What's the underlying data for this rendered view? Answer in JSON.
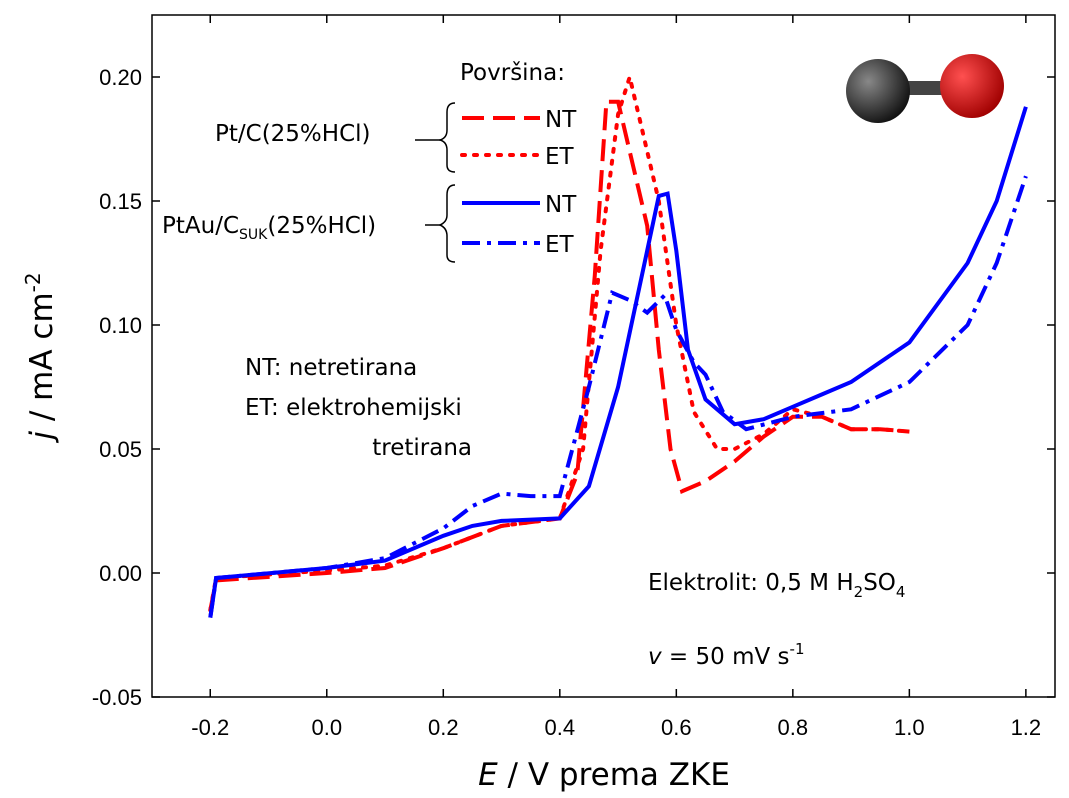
{
  "chart_data": {
    "type": "line",
    "xlabel": [
      "E",
      " / V prema ZKE"
    ],
    "ylabel": [
      "j",
      " / mA cm",
      "-2"
    ],
    "xlim": [
      -0.3,
      1.25
    ],
    "ylim": [
      -0.05,
      0.225
    ],
    "xticks": [
      -0.2,
      {
        "value": 0,
        "label": "0.0"
      },
      0.2,
      0.4,
      0.6,
      0.8,
      {
        "value": 1,
        "label": "1.0"
      },
      1.2
    ],
    "yticks": [
      {
        "value": -0.05,
        "label": "-0.05"
      },
      {
        "value": 0,
        "label": "0.00"
      },
      {
        "value": 0.05,
        "label": "0.05"
      },
      {
        "value": 0.1,
        "label": "0.10"
      },
      {
        "value": 0.15,
        "label": "0.15"
      },
      {
        "value": 0.2,
        "label": "0.20"
      }
    ],
    "legend_title": "Površina:",
    "legend_groups": [
      {
        "label": [
          "Pt/C(25%HCl)"
        ]
      },
      {
        "label": [
          "PtAu/C",
          "SUK",
          "(25%HCl)"
        ]
      }
    ],
    "annotations": {
      "abbrev": [
        "NT: netretirana",
        "ET: elektrohemijski",
        "tretirana"
      ],
      "electrolyte": [
        "Elektrolit:  0,5 M H",
        "2",
        "SO",
        "4"
      ],
      "rate": [
        "v",
        " = 50 mV s",
        "-1"
      ]
    },
    "series": [
      {
        "name": "NT",
        "group": 0,
        "color": "#ff0000",
        "dash": "dash",
        "x": [
          -0.2,
          -0.19,
          0.0,
          0.1,
          0.2,
          0.3,
          0.4,
          0.43,
          0.46,
          0.48,
          0.5,
          0.52,
          0.55,
          0.57,
          0.59,
          0.61,
          0.65,
          0.7,
          0.75,
          0.8,
          0.85,
          0.9,
          0.95,
          1.0
        ],
        "values": [
          -0.015,
          -0.003,
          0.0,
          0.002,
          0.01,
          0.019,
          0.022,
          0.04,
          0.12,
          0.19,
          0.19,
          0.17,
          0.14,
          0.09,
          0.05,
          0.033,
          0.037,
          0.045,
          0.055,
          0.063,
          0.063,
          0.058,
          0.058,
          0.057
        ]
      },
      {
        "name": "ET",
        "group": 0,
        "color": "#ff0000",
        "dash": "dot",
        "x": [
          -0.2,
          -0.19,
          0.0,
          0.1,
          0.2,
          0.3,
          0.4,
          0.44,
          0.47,
          0.5,
          0.52,
          0.54,
          0.57,
          0.6,
          0.63,
          0.67,
          0.7,
          0.75,
          0.8,
          0.85,
          0.9,
          0.95,
          1.0
        ],
        "values": [
          -0.015,
          -0.002,
          0.001,
          0.003,
          0.01,
          0.019,
          0.022,
          0.05,
          0.13,
          0.185,
          0.2,
          0.18,
          0.15,
          0.1,
          0.065,
          0.05,
          0.05,
          0.056,
          0.066,
          0.063,
          0.058,
          0.058,
          0.057
        ]
      },
      {
        "name": "NT",
        "group": 1,
        "color": "#0000ff",
        "dash": "solid",
        "x": [
          -0.2,
          -0.19,
          0.0,
          0.1,
          0.2,
          0.25,
          0.3,
          0.4,
          0.45,
          0.5,
          0.55,
          0.57,
          0.585,
          0.6,
          0.62,
          0.65,
          0.7,
          0.75,
          0.8,
          0.85,
          0.9,
          1.0,
          1.1,
          1.15,
          1.2
        ],
        "values": [
          -0.018,
          -0.002,
          0.002,
          0.005,
          0.015,
          0.019,
          0.021,
          0.022,
          0.035,
          0.075,
          0.13,
          0.152,
          0.153,
          0.13,
          0.09,
          0.07,
          0.06,
          0.062,
          0.067,
          0.072,
          0.077,
          0.093,
          0.125,
          0.15,
          0.188
        ]
      },
      {
        "name": "ET",
        "group": 1,
        "color": "#0000ff",
        "dash": "dashdot",
        "x": [
          -0.2,
          -0.19,
          0.0,
          0.1,
          0.2,
          0.25,
          0.3,
          0.35,
          0.4,
          0.45,
          0.49,
          0.52,
          0.55,
          0.58,
          0.6,
          0.63,
          0.65,
          0.68,
          0.72,
          0.8,
          0.9,
          1.0,
          1.1,
          1.15,
          1.2
        ],
        "values": [
          -0.018,
          -0.002,
          0.002,
          0.006,
          0.018,
          0.027,
          0.032,
          0.031,
          0.031,
          0.075,
          0.113,
          0.11,
          0.105,
          0.112,
          0.098,
          0.085,
          0.08,
          0.065,
          0.058,
          0.063,
          0.066,
          0.077,
          0.1,
          0.125,
          0.16
        ]
      }
    ]
  }
}
